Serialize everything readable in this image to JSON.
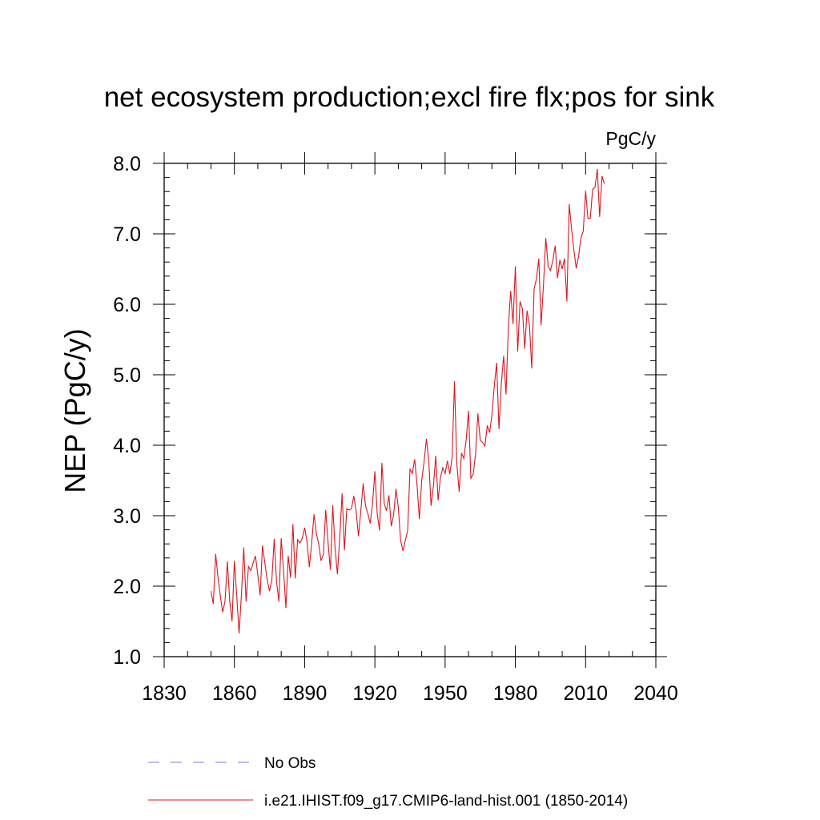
{
  "chart_data": {
    "type": "line",
    "title": "net ecosystem production;excl fire flx;pos for sink",
    "units_label": "PgC/y",
    "ylabel": "NEP  (PgC/y)",
    "xlabel": "",
    "xlim": [
      1830,
      2040
    ],
    "ylim": [
      1.0,
      8.0
    ],
    "x_ticks": [
      1830,
      1860,
      1890,
      1920,
      1950,
      1980,
      2010,
      2040
    ],
    "x_tick_labels": [
      "1830",
      "1860",
      "1890",
      "1920",
      "1950",
      "1980",
      "2010",
      "2040"
    ],
    "y_ticks": [
      1,
      2,
      3,
      4,
      5,
      6,
      7,
      8
    ],
    "y_tick_labels": [
      "1.0",
      "2.0",
      "3.0",
      "4.0",
      "5.0",
      "6.0",
      "7.0",
      "8.0"
    ],
    "grid": false,
    "legend_position": "bottom",
    "series": [
      {
        "name": "No Obs",
        "color": "#7b7bd0",
        "style": "dashed",
        "x": [],
        "y": []
      },
      {
        "name": "i.e21.IHIST.f09_g17.CMIP6-land-hist.001 (1850-2014)",
        "color": "#e0141e",
        "style": "solid",
        "x_start": 1850,
        "x_end": 2014,
        "y": [
          1.93,
          1.75,
          2.46,
          2.12,
          1.86,
          1.63,
          1.79,
          2.35,
          1.79,
          1.5,
          2.36,
          1.86,
          1.33,
          1.88,
          2.55,
          1.78,
          2.28,
          2.22,
          2.33,
          2.43,
          2.16,
          1.87,
          2.58,
          2.33,
          2.09,
          1.93,
          2.09,
          2.67,
          2.07,
          1.78,
          2.68,
          2.22,
          1.69,
          2.43,
          2.12,
          2.88,
          2.11,
          2.66,
          2.61,
          2.68,
          2.83,
          2.63,
          2.27,
          2.61,
          3.02,
          2.75,
          2.6,
          2.36,
          2.45,
          3.08,
          2.62,
          2.23,
          3.15,
          2.54,
          2.17,
          2.69,
          3.32,
          2.51,
          3.1,
          3.08,
          3.1,
          3.28,
          3.06,
          2.71,
          3.07,
          3.46,
          3.14,
          3.03,
          2.89,
          3.17,
          3.63,
          3.03,
          2.79,
          3.75,
          3.17,
          3.07,
          3.29,
          2.85,
          3.01,
          3.38,
          3.12,
          2.65,
          2.5,
          2.65,
          2.79,
          3.66,
          3.6,
          3.8,
          3.44,
          2.95,
          3.5,
          3.76,
          4.09,
          3.79,
          3.14,
          3.42,
          3.85,
          3.22,
          3.54,
          3.68,
          3.6,
          3.78,
          3.59,
          3.83,
          4.91,
          3.74,
          3.34,
          3.89,
          3.81,
          4.08,
          4.49,
          3.53,
          3.59,
          3.88,
          4.45,
          4.07,
          4.04,
          3.99,
          4.28,
          4.18,
          4.43,
          4.84,
          5.17,
          4.23,
          4.87,
          5.27,
          4.72,
          5.67,
          6.19,
          5.72,
          6.54,
          5.33,
          6.04,
          5.94,
          5.37,
          5.91,
          5.71,
          5.09,
          6.22,
          6.36,
          6.65,
          5.7,
          6.27,
          6.94,
          6.54,
          6.48,
          6.62,
          6.83,
          6.37,
          6.63,
          6.5,
          6.65,
          6.04,
          7.42,
          7.07,
          6.77,
          6.51,
          6.68,
          6.94,
          7.04,
          7.61,
          7.22,
          7.22,
          7.63,
          7.66,
          7.92,
          7.24,
          7.82,
          7.71
        ]
      }
    ]
  }
}
